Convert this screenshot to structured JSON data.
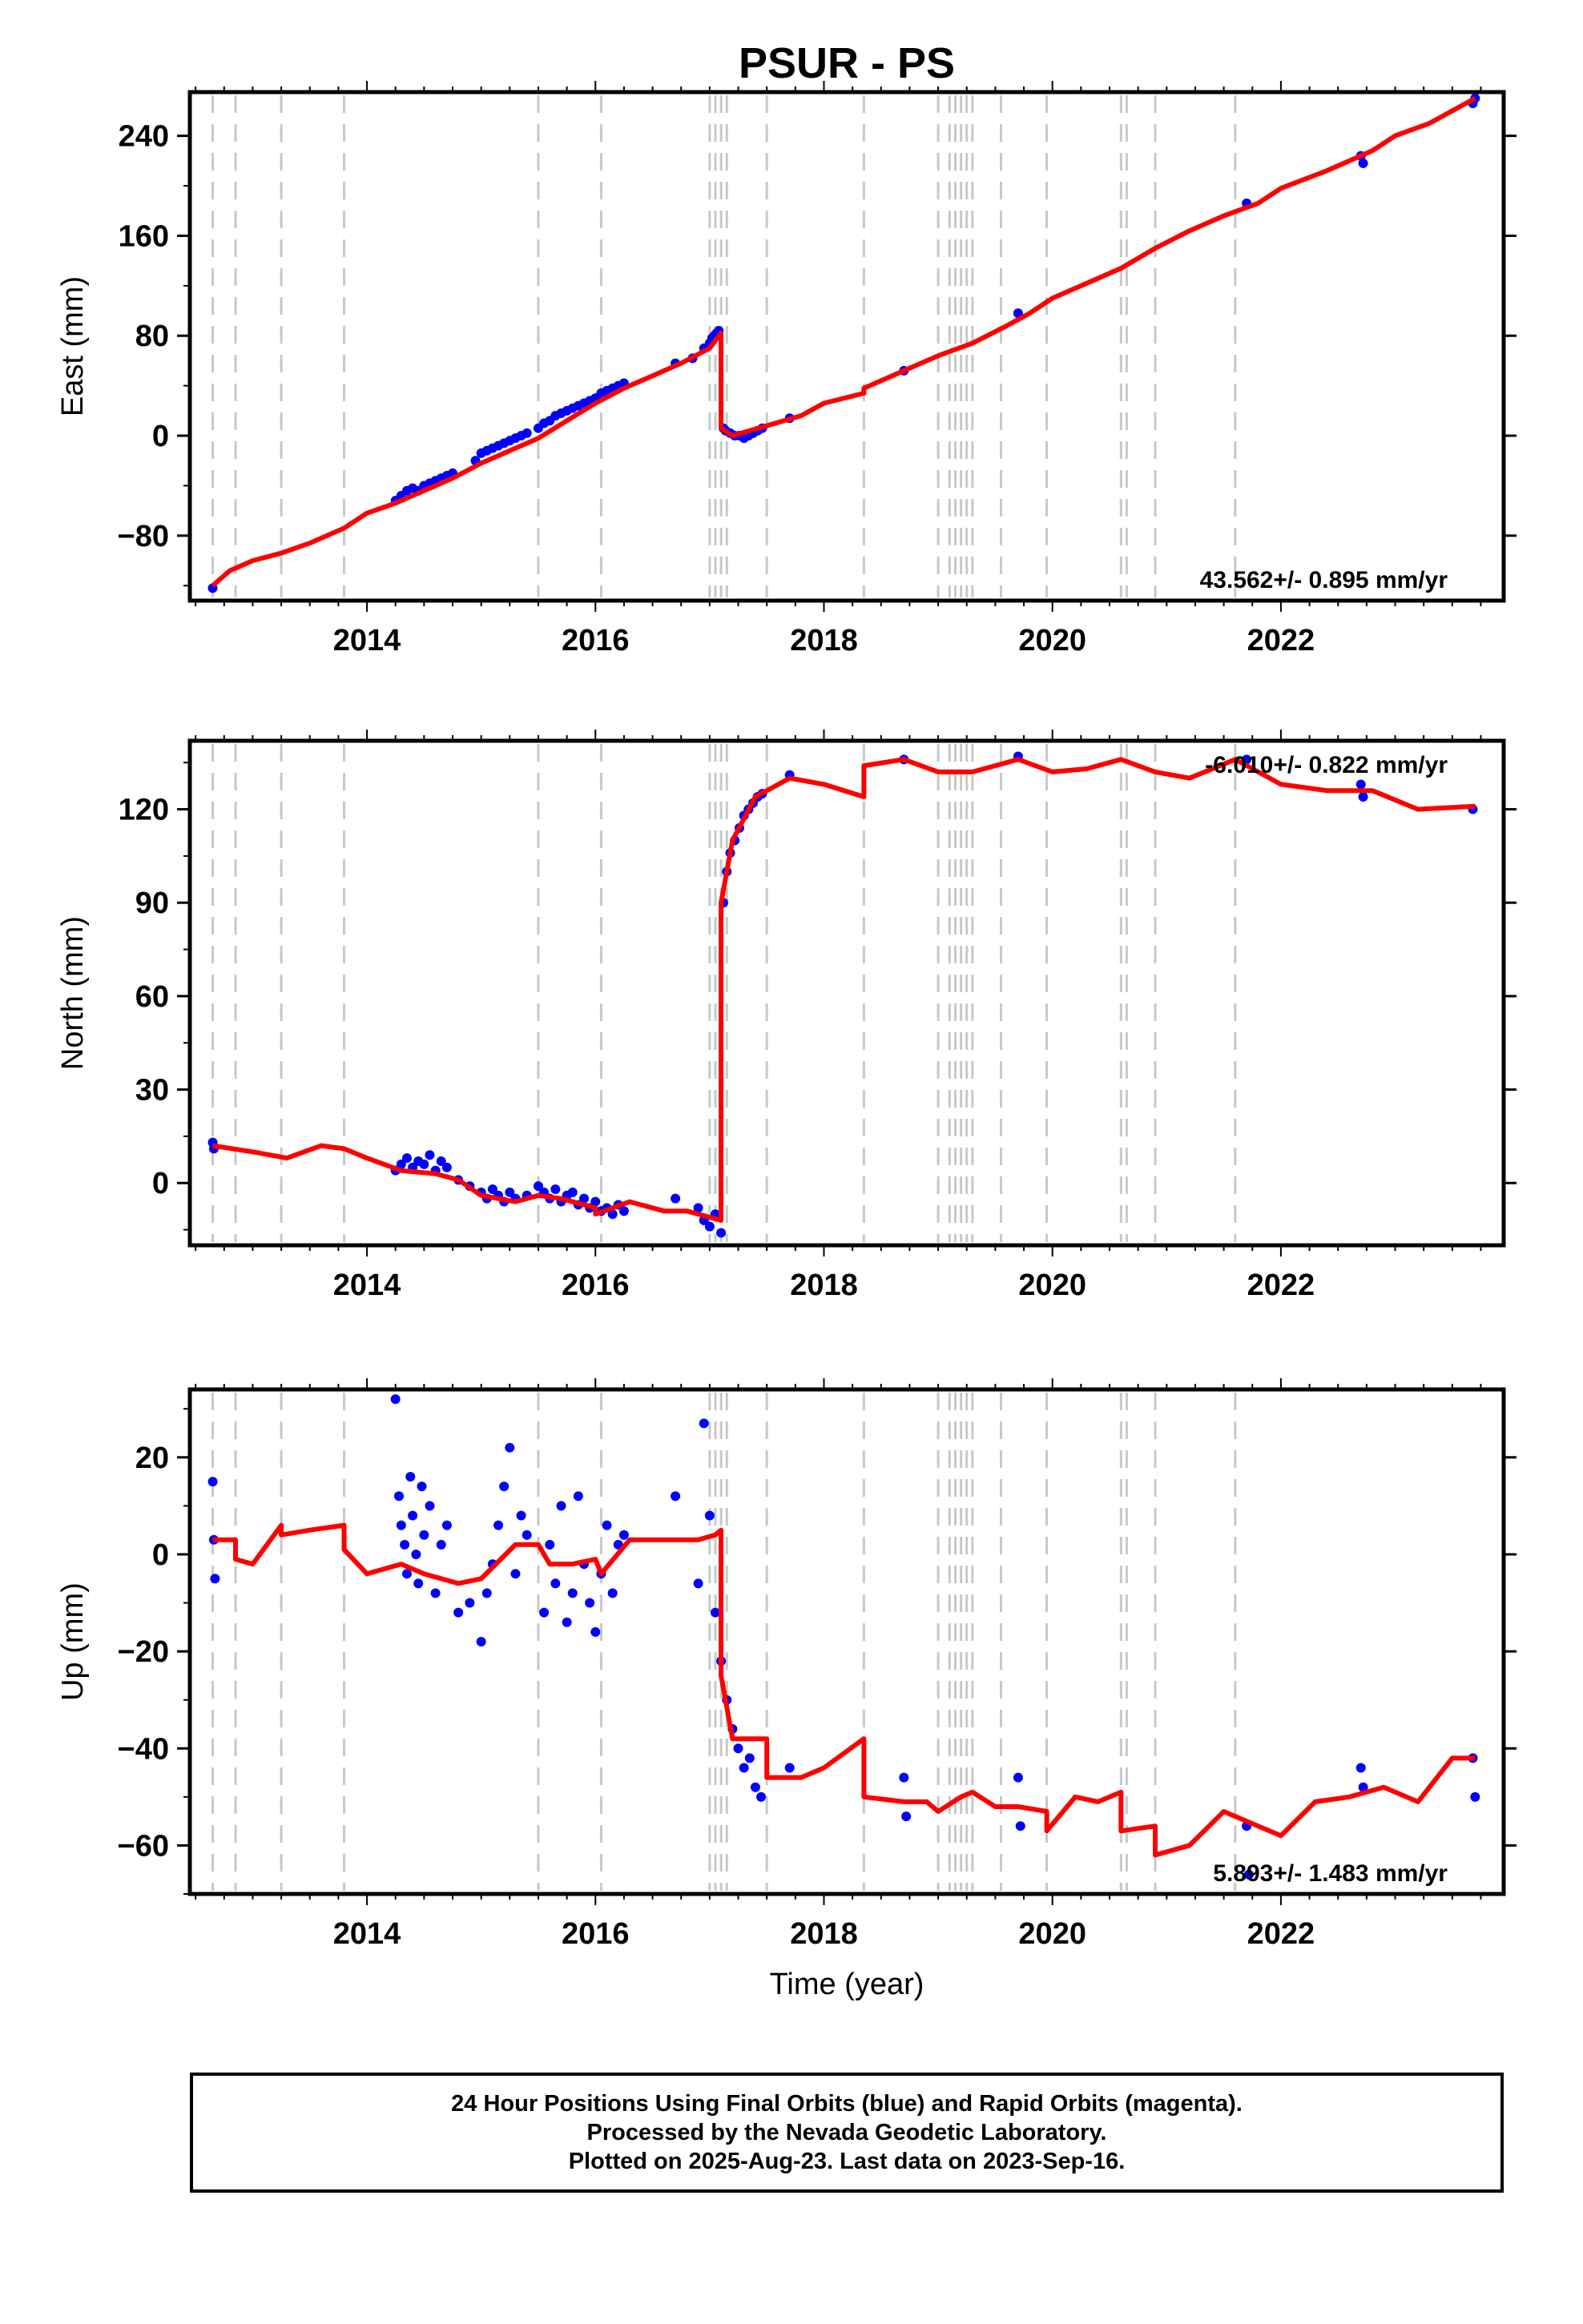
{
  "chart_data": [
    {
      "type": "scatter",
      "panel": "east",
      "title": "PSUR - PS",
      "ylabel": "East (mm)",
      "xlabel": "",
      "xlim": [
        2012.45,
        2023.95
      ],
      "ylim": [
        -132,
        275
      ],
      "x_ticks": [
        2014,
        2016,
        2018,
        2020,
        2022
      ],
      "y_ticks": [
        -80,
        0,
        80,
        160,
        240
      ],
      "y_tick_labels": [
        "−80",
        "0",
        "80",
        "160",
        "240"
      ],
      "rate_label": "43.562+/- 0.895 mm/yr",
      "series": [
        {
          "name": "",
          "kind": "points",
          "color": "#0000ff",
          "x": [
            2012.65,
            2014.25,
            2014.3,
            2014.35,
            2014.4,
            2014.45,
            2014.5,
            2014.55,
            2014.6,
            2014.65,
            2014.7,
            2014.75,
            2014.95,
            2015.0,
            2015.05,
            2015.1,
            2015.15,
            2015.2,
            2015.25,
            2015.3,
            2015.35,
            2015.4,
            2015.5,
            2015.55,
            2015.6,
            2015.65,
            2015.7,
            2015.75,
            2015.8,
            2015.85,
            2015.9,
            2015.95,
            2016.0,
            2016.05,
            2016.1,
            2016.15,
            2016.2,
            2016.25,
            2016.7,
            2016.85,
            2016.95,
            2017.0,
            2017.02,
            2017.04,
            2017.06,
            2017.08,
            2017.12,
            2017.14,
            2017.18,
            2017.22,
            2017.26,
            2017.3,
            2017.34,
            2017.38,
            2017.42,
            2017.46,
            2017.7,
            2018.7,
            2019.7,
            2021.7,
            2022.7,
            2022.72,
            2023.68,
            2023.7
          ],
          "y": [
            -122,
            -52,
            -48,
            -44,
            -42,
            -44,
            -40,
            -38,
            -36,
            -34,
            -32,
            -30,
            -20,
            -14,
            -12,
            -10,
            -8,
            -6,
            -4,
            -2,
            0,
            2,
            6,
            10,
            12,
            16,
            18,
            20,
            22,
            24,
            26,
            28,
            30,
            34,
            36,
            38,
            40,
            42,
            58,
            62,
            70,
            74,
            78,
            80,
            82,
            84,
            6,
            4,
            2,
            0,
            0,
            -2,
            0,
            2,
            4,
            6,
            14,
            52,
            98,
            186,
            224,
            218,
            266,
            270
          ]
        },
        {
          "name": "",
          "kind": "line",
          "color": "#ff0000",
          "x": [
            2012.65,
            2012.8,
            2013.0,
            2013.25,
            2013.5,
            2013.8,
            2014.0,
            2014.25,
            2014.5,
            2014.75,
            2015.0,
            2015.25,
            2015.5,
            2015.75,
            2016.0,
            2016.25,
            2016.5,
            2016.75,
            2017.0,
            2017.1,
            2017.1,
            2017.2,
            2017.35,
            2017.5,
            2017.8,
            2018.0,
            2018.35,
            2018.35,
            2018.7,
            2019.0,
            2019.3,
            2019.6,
            2019.8,
            2020.0,
            2020.3,
            2020.6,
            2020.9,
            2021.2,
            2021.5,
            2021.8,
            2022.0,
            2022.4,
            2022.8,
            2023.0,
            2023.3,
            2023.7
          ],
          "y": [
            -120,
            -108,
            -100,
            -94,
            -86,
            -74,
            -62,
            -54,
            -44,
            -34,
            -22,
            -12,
            -2,
            12,
            26,
            38,
            48,
            58,
            70,
            82,
            6,
            0,
            4,
            8,
            16,
            26,
            34,
            38,
            52,
            64,
            74,
            88,
            98,
            110,
            122,
            134,
            150,
            164,
            176,
            186,
            198,
            212,
            228,
            240,
            250,
            270
          ]
        }
      ]
    },
    {
      "type": "scatter",
      "panel": "north",
      "title": "",
      "ylabel": "North (mm)",
      "xlabel": "",
      "xlim": [
        2012.45,
        2023.95
      ],
      "ylim": [
        -20,
        142
      ],
      "x_ticks": [
        2014,
        2016,
        2018,
        2020,
        2022
      ],
      "y_ticks": [
        0,
        30,
        60,
        90,
        120
      ],
      "y_tick_labels": [
        "0",
        "30",
        "60",
        "90",
        "120"
      ],
      "rate_label": "-6.010+/- 0.822 mm/yr",
      "series": [
        {
          "name": "",
          "kind": "points",
          "color": "#0000ff",
          "x": [
            2012.65,
            2012.66,
            2014.25,
            2014.3,
            2014.35,
            2014.4,
            2014.45,
            2014.5,
            2014.55,
            2014.6,
            2014.65,
            2014.7,
            2014.8,
            2014.9,
            2015.0,
            2015.05,
            2015.1,
            2015.15,
            2015.2,
            2015.25,
            2015.3,
            2015.4,
            2015.5,
            2015.55,
            2015.6,
            2015.65,
            2015.7,
            2015.75,
            2015.8,
            2015.85,
            2015.9,
            2015.95,
            2016.0,
            2016.05,
            2016.1,
            2016.15,
            2016.2,
            2016.25,
            2016.7,
            2016.9,
            2016.95,
            2017.0,
            2017.05,
            2017.1,
            2017.12,
            2017.15,
            2017.18,
            2017.22,
            2017.26,
            2017.3,
            2017.34,
            2017.38,
            2017.42,
            2017.46,
            2017.7,
            2018.7,
            2019.7,
            2021.7,
            2022.7,
            2022.72,
            2023.68
          ],
          "y": [
            13,
            11,
            4,
            6,
            8,
            5,
            7,
            6,
            9,
            4,
            7,
            5,
            1,
            -1,
            -3,
            -5,
            -2,
            -4,
            -6,
            -3,
            -5,
            -4,
            -1,
            -3,
            -5,
            -2,
            -6,
            -4,
            -3,
            -7,
            -5,
            -8,
            -6,
            -9,
            -8,
            -10,
            -7,
            -9,
            -5,
            -8,
            -12,
            -14,
            -10,
            -16,
            90,
            100,
            106,
            110,
            114,
            118,
            120,
            122,
            124,
            125,
            131,
            136,
            137,
            136,
            128,
            124,
            120
          ]
        },
        {
          "name": "",
          "kind": "line",
          "color": "#ff0000",
          "x": [
            2012.65,
            2013.0,
            2013.3,
            2013.6,
            2013.8,
            2014.0,
            2014.3,
            2014.6,
            2014.8,
            2015.0,
            2015.3,
            2015.5,
            2015.7,
            2016.0,
            2016.0,
            2016.3,
            2016.6,
            2016.8,
            2017.0,
            2017.1,
            2017.1,
            2017.2,
            2017.4,
            2017.7,
            2018.0,
            2018.35,
            2018.35,
            2018.7,
            2019.0,
            2019.3,
            2019.5,
            2019.7,
            2020.0,
            2020.3,
            2020.6,
            2020.9,
            2021.2,
            2021.6,
            2022.0,
            2022.4,
            2022.8,
            2023.2,
            2023.7
          ],
          "y": [
            12,
            10,
            8,
            12,
            11,
            8,
            4,
            3,
            1,
            -4,
            -6,
            -4,
            -5,
            -8,
            -10,
            -6,
            -9,
            -9,
            -11,
            -12,
            90,
            110,
            124,
            130,
            128,
            124,
            134,
            136,
            132,
            132,
            134,
            136,
            132,
            133,
            136,
            132,
            130,
            136,
            128,
            126,
            126,
            120,
            121
          ]
        }
      ]
    },
    {
      "type": "scatter",
      "panel": "up",
      "title": "",
      "ylabel": "Up (mm)",
      "xlabel": "Time (year)",
      "xlim": [
        2012.45,
        2023.95
      ],
      "ylim": [
        -70,
        34
      ],
      "x_ticks": [
        2014,
        2016,
        2018,
        2020,
        2022
      ],
      "y_ticks": [
        -60,
        -40,
        -20,
        0,
        20
      ],
      "y_tick_labels": [
        "−60",
        "−40",
        "−20",
        "0",
        "20"
      ],
      "rate_label": "5.893+/- 1.483 mm/yr",
      "series": [
        {
          "name": "",
          "kind": "points",
          "color": "#0000ff",
          "x": [
            2012.65,
            2012.66,
            2012.67,
            2014.25,
            2014.28,
            2014.3,
            2014.33,
            2014.35,
            2014.38,
            2014.4,
            2014.43,
            2014.45,
            2014.48,
            2014.5,
            2014.55,
            2014.6,
            2014.65,
            2014.7,
            2014.8,
            2014.9,
            2015.0,
            2015.05,
            2015.1,
            2015.15,
            2015.2,
            2015.25,
            2015.3,
            2015.35,
            2015.4,
            2015.55,
            2015.6,
            2015.65,
            2015.7,
            2015.75,
            2015.8,
            2015.85,
            2015.9,
            2015.95,
            2016.0,
            2016.05,
            2016.1,
            2016.15,
            2016.2,
            2016.25,
            2016.7,
            2016.9,
            2016.95,
            2017.0,
            2017.05,
            2017.1,
            2017.15,
            2017.2,
            2017.25,
            2017.3,
            2017.35,
            2017.4,
            2017.45,
            2017.7,
            2018.7,
            2018.72,
            2019.7,
            2019.72,
            2021.7,
            2021.72,
            2022.7,
            2022.72,
            2023.68,
            2023.7
          ],
          "y": [
            15,
            3,
            -5,
            32,
            12,
            6,
            2,
            -4,
            16,
            8,
            0,
            -6,
            14,
            4,
            10,
            -8,
            2,
            6,
            -12,
            -10,
            -18,
            -8,
            -2,
            6,
            14,
            22,
            -4,
            8,
            4,
            -12,
            2,
            -6,
            10,
            -14,
            -8,
            12,
            -2,
            -10,
            -16,
            -4,
            6,
            -8,
            2,
            4,
            12,
            -6,
            27,
            8,
            -12,
            -22,
            -30,
            -36,
            -40,
            -44,
            -42,
            -48,
            -50,
            -44,
            -46,
            -54,
            -46,
            -56,
            -56,
            -66,
            -44,
            -48,
            -42,
            -50
          ]
        },
        {
          "name": "",
          "kind": "line",
          "color": "#ff0000",
          "x": [
            2012.65,
            2012.85,
            2012.85,
            2013.0,
            2013.25,
            2013.25,
            2013.5,
            2013.8,
            2013.8,
            2014.0,
            2014.3,
            2014.5,
            2014.8,
            2015.0,
            2015.3,
            2015.5,
            2015.6,
            2015.8,
            2016.0,
            2016.05,
            2016.3,
            2016.6,
            2016.9,
            2017.05,
            2017.1,
            2017.1,
            2017.2,
            2017.3,
            2017.5,
            2017.5,
            2017.8,
            2018.0,
            2018.35,
            2018.35,
            2018.7,
            2018.9,
            2019.0,
            2019.2,
            2019.3,
            2019.5,
            2019.7,
            2019.95,
            2019.95,
            2020.2,
            2020.4,
            2020.6,
            2020.6,
            2020.9,
            2020.9,
            2021.2,
            2021.5,
            2021.8,
            2022.0,
            2022.3,
            2022.6,
            2022.9,
            2023.2,
            2023.5,
            2023.7
          ],
          "y": [
            3,
            3,
            -1,
            -2,
            6,
            4,
            5,
            6,
            1,
            -4,
            -2,
            -4,
            -6,
            -5,
            2,
            2,
            -2,
            -2,
            -1,
            -4,
            3,
            3,
            3,
            4,
            5,
            -25,
            -38,
            -38,
            -38,
            -46,
            -46,
            -44,
            -38,
            -50,
            -51,
            -51,
            -53,
            -50,
            -49,
            -52,
            -52,
            -53,
            -57,
            -50,
            -51,
            -49,
            -57,
            -56,
            -62,
            -60,
            -53,
            -56,
            -58,
            -51,
            -50,
            -48,
            -51,
            -42,
            -42
          ]
        }
      ]
    }
  ],
  "steps": {
    "x": [
      2012.65,
      2012.85,
      2013.25,
      2013.8,
      2015.5,
      2016.05,
      2017.0,
      2017.05,
      2017.1,
      2017.15,
      2017.5,
      2018.35,
      2019.0,
      2019.1,
      2019.15,
      2019.2,
      2019.25,
      2019.3,
      2019.55,
      2019.95,
      2020.6,
      2020.65,
      2020.9,
      2021.6
    ],
    "color": "#c8c8c8"
  },
  "footer": {
    "line1": "24 Hour Positions Using Final Orbits (blue) and Rapid Orbits (magenta).",
    "line2": "Processed by the Nevada Geodetic Laboratory.",
    "line3": "Plotted on 2025-Aug-23. Last data on 2023-Sep-16."
  },
  "colors": {
    "points": "#0000ff",
    "model": "#ff0000",
    "steps": "#c8c8c8"
  }
}
